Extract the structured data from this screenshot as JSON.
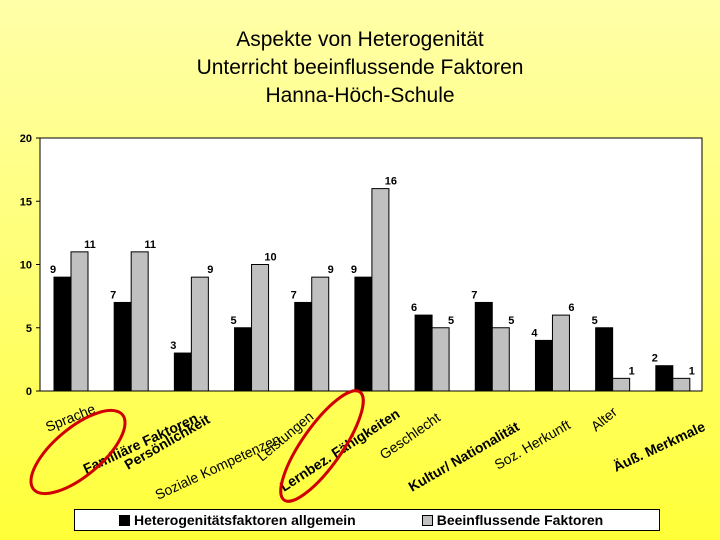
{
  "page": {
    "title_lines": [
      "Aspekte von Heterogenität",
      "Unterricht beeinflussende Faktoren",
      "Hanna-Höch-Schule"
    ]
  },
  "colors": {
    "series_1": "#000000",
    "series_2": "#c0c0c0",
    "highlight_ellipse": "#d00000",
    "plot_background": "#ffffff"
  },
  "chart_data": {
    "type": "bar",
    "title": "Aspekte von Heterogenität Unterricht beeinflussende Faktoren Hanna-Höch-Schule",
    "categories": [
      "Sprache",
      "Familiäre Faktoren",
      "Persönlichkeit",
      "Soziale Kompetenzen",
      "Leistungen",
      "Lernbez. Fähigkeiten",
      "Geschlecht",
      "Kultur/ Nationalität",
      "Soz. Herkunft",
      "Alter",
      "Äuß. Merkmale"
    ],
    "series": [
      {
        "name": "Heterogenitätsfaktoren allgemein",
        "values": [
          9,
          7,
          3,
          5,
          7,
          9,
          6,
          7,
          4,
          5,
          2
        ]
      },
      {
        "name": "Beeinflussende Faktoren",
        "values": [
          11,
          11,
          9,
          10,
          9,
          16,
          5,
          5,
          6,
          1,
          1
        ]
      }
    ],
    "ylim": [
      0,
      20
    ],
    "yticks": [
      0,
      5,
      10,
      15,
      20
    ],
    "grid": false,
    "legend_position": "bottom",
    "highlighted_categories": [
      "Familiäre Faktoren",
      "Lernbez. Fähigkeiten"
    ]
  }
}
